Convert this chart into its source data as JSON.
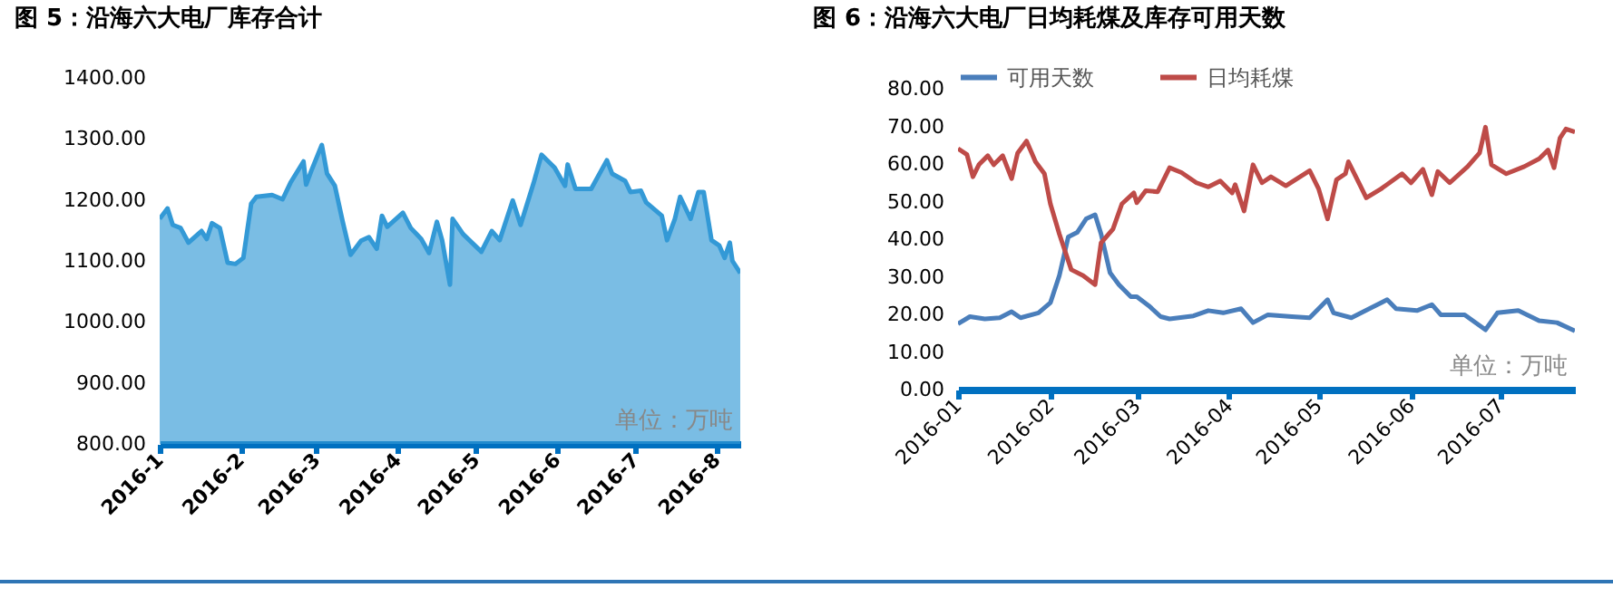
{
  "chart_data": [
    {
      "type": "area",
      "title": "图 5：沿海六大电厂库存合计",
      "annotations": [
        "单位：万吨"
      ],
      "grid": false,
      "xlim": [
        "2016-01-01",
        "2016-08-10"
      ],
      "xticks": [
        {
          "value": "2016-01-01",
          "label": "2016-1"
        },
        {
          "value": "2016-02-01",
          "label": "2016-2"
        },
        {
          "value": "2016-03-01",
          "label": "2016-3"
        },
        {
          "value": "2016-04-01",
          "label": "2016-4"
        },
        {
          "value": "2016-05-01",
          "label": "2016-5"
        },
        {
          "value": "2016-06-01",
          "label": "2016-6"
        },
        {
          "value": "2016-07-01",
          "label": "2016-7"
        },
        {
          "value": "2016-08-01",
          "label": "2016-8"
        }
      ],
      "ylim": [
        800,
        1400
      ],
      "yticks": [
        {
          "value": 800,
          "label": "800.00"
        },
        {
          "value": 900,
          "label": "900.00"
        },
        {
          "value": 1000,
          "label": "1000.00"
        },
        {
          "value": 1100,
          "label": "1100.00"
        },
        {
          "value": 1200,
          "label": "1200.00"
        },
        {
          "value": 1300,
          "label": "1300.00"
        },
        {
          "value": 1400,
          "label": "1400.00"
        }
      ],
      "x": [
        "2016-01-01",
        "2016-01-04",
        "2016-01-06",
        "2016-01-09",
        "2016-01-12",
        "2016-01-17",
        "2016-01-19",
        "2016-01-21",
        "2016-01-24",
        "2016-01-27",
        "2016-01-30",
        "2016-02-02",
        "2016-02-05",
        "2016-02-07",
        "2016-02-13",
        "2016-02-17",
        "2016-02-20",
        "2016-02-25",
        "2016-02-26",
        "2016-02-28",
        "2016-03-03",
        "2016-03-05",
        "2016-03-08",
        "2016-03-11",
        "2016-03-14",
        "2016-03-18",
        "2016-03-21",
        "2016-03-24",
        "2016-03-26",
        "2016-03-28",
        "2016-04-03",
        "2016-04-06",
        "2016-04-10",
        "2016-04-13",
        "2016-04-16",
        "2016-04-18",
        "2016-04-21",
        "2016-04-22",
        "2016-04-26",
        "2016-05-03",
        "2016-05-07",
        "2016-05-10",
        "2016-05-15",
        "2016-05-18",
        "2016-05-23",
        "2016-05-26",
        "2016-05-31",
        "2016-06-04",
        "2016-06-05",
        "2016-06-08",
        "2016-06-14",
        "2016-06-20",
        "2016-06-22",
        "2016-06-27",
        "2016-06-29",
        "2016-07-03",
        "2016-07-05",
        "2016-07-11",
        "2016-07-13",
        "2016-07-16",
        "2016-07-18",
        "2016-07-22",
        "2016-07-25",
        "2016-07-27",
        "2016-07-30",
        "2016-08-02",
        "2016-08-04",
        "2016-08-06",
        "2016-08-07",
        "2016-08-10"
      ],
      "series": [
        {
          "color": "#3399d6",
          "values": [
            1169,
            1186,
            1159,
            1154,
            1130,
            1149,
            1136,
            1162,
            1154,
            1097,
            1095,
            1105,
            1194,
            1205,
            1208,
            1201,
            1228,
            1263,
            1225,
            1248,
            1290,
            1243,
            1223,
            1164,
            1110,
            1133,
            1139,
            1120,
            1174,
            1156,
            1179,
            1154,
            1136,
            1113,
            1164,
            1134,
            1061,
            1169,
            1144,
            1115,
            1149,
            1134,
            1199,
            1159,
            1228,
            1274,
            1253,
            1223,
            1258,
            1218,
            1218,
            1265,
            1243,
            1231,
            1213,
            1215,
            1196,
            1174,
            1134,
            1169,
            1205,
            1169,
            1213,
            1213,
            1134,
            1125,
            1105,
            1130,
            1100,
            1080
          ]
        }
      ]
    },
    {
      "type": "line",
      "title": "图 6：沿海六大电厂日均耗煤及库存可用天数",
      "annotations": [
        "单位：万吨"
      ],
      "grid": false,
      "legend": "top",
      "xlim": [
        "2016-01-01",
        "2016-07-26"
      ],
      "xticks": [
        {
          "value": "2016-01-01",
          "label": "2016-01"
        },
        {
          "value": "2016-02-01",
          "label": "2016-02"
        },
        {
          "value": "2016-03-01",
          "label": "2016-03"
        },
        {
          "value": "2016-04-01",
          "label": "2016-04"
        },
        {
          "value": "2016-05-01",
          "label": "2016-05"
        },
        {
          "value": "2016-06-01",
          "label": "2016-06"
        },
        {
          "value": "2016-07-01",
          "label": "2016-07"
        }
      ],
      "ylim": [
        0,
        80
      ],
      "yticks": [
        {
          "value": 0,
          "label": "0.00"
        },
        {
          "value": 10,
          "label": "10.00"
        },
        {
          "value": 20,
          "label": "20.00"
        },
        {
          "value": 30,
          "label": "30.00"
        },
        {
          "value": 40,
          "label": "40.00"
        },
        {
          "value": 50,
          "label": "50.00"
        },
        {
          "value": 60,
          "label": "60.00"
        },
        {
          "value": 70,
          "label": "70.00"
        },
        {
          "value": 80,
          "label": "80.00"
        }
      ],
      "series": [
        {
          "name": "可用天数",
          "color": "#4a7ebb",
          "x": [
            "2016-01-01",
            "2016-01-05",
            "2016-01-10",
            "2016-01-15",
            "2016-01-19",
            "2016-01-22",
            "2016-01-28",
            "2016-02-01",
            "2016-02-04",
            "2016-02-07",
            "2016-02-10",
            "2016-02-13",
            "2016-02-16",
            "2016-02-18",
            "2016-02-21",
            "2016-02-24",
            "2016-02-28",
            "2016-03-01",
            "2016-03-05",
            "2016-03-09",
            "2016-03-12",
            "2016-03-20",
            "2016-03-25",
            "2016-03-30",
            "2016-04-05",
            "2016-04-09",
            "2016-04-14",
            "2016-04-22",
            "2016-04-28",
            "2016-05-04",
            "2016-05-06",
            "2016-05-12",
            "2016-05-18",
            "2016-05-24",
            "2016-05-27",
            "2016-06-03",
            "2016-06-08",
            "2016-06-11",
            "2016-06-19",
            "2016-06-26",
            "2016-06-30",
            "2016-07-07",
            "2016-07-14",
            "2016-07-20",
            "2016-07-26"
          ],
          "values": [
            17.5,
            19.4,
            18.8,
            19.1,
            20.7,
            19.1,
            20.4,
            23.1,
            30.3,
            40.6,
            41.8,
            45.4,
            46.5,
            41.4,
            31.1,
            27.9,
            24.7,
            24.7,
            22.3,
            19.4,
            18.8,
            19.6,
            21.0,
            20.4,
            21.5,
            17.8,
            19.9,
            19.4,
            19.1,
            23.9,
            20.4,
            19.1,
            21.5,
            23.9,
            21.5,
            21.0,
            22.6,
            19.9,
            19.9,
            15.9,
            20.4,
            21.0,
            18.3,
            17.8,
            15.6
          ]
        },
        {
          "name": "日均耗煤",
          "color": "#be4b48",
          "x": [
            "2016-01-01",
            "2016-01-04",
            "2016-01-06",
            "2016-01-08",
            "2016-01-11",
            "2016-01-13",
            "2016-01-16",
            "2016-01-19",
            "2016-01-21",
            "2016-01-24",
            "2016-01-27",
            "2016-01-30",
            "2016-02-01",
            "2016-02-04",
            "2016-02-08",
            "2016-02-12",
            "2016-02-16",
            "2016-02-18",
            "2016-02-22",
            "2016-02-25",
            "2016-02-29",
            "2016-03-01",
            "2016-03-04",
            "2016-03-08",
            "2016-03-12",
            "2016-03-16",
            "2016-03-21",
            "2016-03-25",
            "2016-03-29",
            "2016-04-02",
            "2016-04-03",
            "2016-04-06",
            "2016-04-09",
            "2016-04-12",
            "2016-04-15",
            "2016-04-20",
            "2016-04-28",
            "2016-05-01",
            "2016-05-04",
            "2016-05-07",
            "2016-05-10",
            "2016-05-11",
            "2016-05-14",
            "2016-05-17",
            "2016-05-22",
            "2016-05-29",
            "2016-06-01",
            "2016-06-05",
            "2016-06-08",
            "2016-06-10",
            "2016-06-14",
            "2016-06-20",
            "2016-06-24",
            "2016-06-26",
            "2016-06-28",
            "2016-07-03",
            "2016-07-09",
            "2016-07-14",
            "2016-07-17",
            "2016-07-19",
            "2016-07-21",
            "2016-07-23",
            "2016-07-26"
          ],
          "values": [
            64.1,
            62.5,
            56.6,
            59.8,
            62.2,
            59.8,
            62.2,
            56.1,
            62.9,
            66.1,
            60.6,
            57.4,
            49.4,
            41.4,
            31.9,
            30.3,
            27.9,
            39.0,
            42.7,
            49.4,
            52.3,
            49.7,
            52.9,
            52.6,
            59.0,
            57.7,
            55.0,
            53.9,
            55.5,
            52.3,
            54.5,
            47.5,
            59.8,
            55.0,
            56.6,
            54.2,
            58.2,
            53.4,
            45.4,
            55.8,
            57.4,
            60.6,
            55.8,
            51.0,
            53.4,
            57.4,
            55.0,
            58.6,
            51.8,
            58.0,
            55.0,
            59.3,
            62.9,
            69.8,
            59.8,
            57.4,
            59.3,
            61.4,
            63.7,
            59.0,
            66.9,
            69.3,
            68.5
          ]
        }
      ]
    }
  ]
}
